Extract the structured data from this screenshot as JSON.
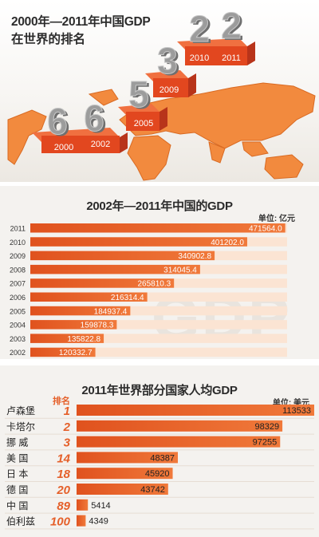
{
  "infographic": {
    "section1": {
      "title": "2000年—2011年中国GDP",
      "subtitle": "在世界的排名"
    },
    "section2": {
      "title": "2002年—2011年中国的GDP",
      "unit": "单位: 亿元",
      "watermark": "GDP"
    },
    "section3": {
      "title": "2011年世界部分国家人均GDP",
      "unit": "单位: 美元",
      "rank_header": "排名"
    }
  },
  "colors": {
    "orange_dark": "#e0521e",
    "orange": "#f0793a",
    "orange_light": "#f7b48a",
    "track": "#fbe4d3",
    "rank_text": "#e5602a",
    "map": "#f28a3e",
    "steps_red": "#e2471f",
    "digits_gray": "#9c9c9c"
  },
  "chart_data": [
    {
      "type": "bar",
      "title": "2000年—2011年中国GDP 在世界的排名",
      "categories": [
        "2000",
        "2002",
        "2005",
        "2009",
        "2010",
        "2011"
      ],
      "values": [
        6,
        6,
        5,
        3,
        2,
        2
      ],
      "style": "3d-steps"
    },
    {
      "type": "bar",
      "orientation": "horizontal",
      "title": "2002年—2011年中国的GDP",
      "unit": "单位: 亿元",
      "categories": [
        "2011",
        "2010",
        "2009",
        "2008",
        "2007",
        "2006",
        "2005",
        "2004",
        "2003",
        "2002"
      ],
      "values": [
        471564.0,
        401202.0,
        340902.8,
        314045.4,
        265810.3,
        216314.4,
        184937.4,
        159878.3,
        135822.8,
        120332.7
      ],
      "labels": [
        "471564.0",
        "401202.0",
        "340902.8",
        "314045.4",
        "265810.3",
        "216314.4",
        "184937.4",
        "159878.3",
        "135822.8",
        "120332.7"
      ],
      "xlim": [
        0,
        475000
      ]
    },
    {
      "type": "bar",
      "orientation": "horizontal",
      "title": "2011年世界部分国家人均GDP",
      "unit": "单位: 美元",
      "categories": [
        "卢森堡",
        "卡塔尔",
        "挪 威",
        "美 国",
        "日 本",
        "德 国",
        "中 国",
        "伯利兹"
      ],
      "ranks": [
        "1",
        "2",
        "3",
        "14",
        "18",
        "20",
        "89",
        "100"
      ],
      "values": [
        113533,
        98329,
        97255,
        48387,
        45920,
        43742,
        5414,
        4349
      ],
      "labels": [
        "113533",
        "98329",
        "97255",
        "48387",
        "45920",
        "43742",
        "5414",
        "4349"
      ],
      "xlim": [
        0,
        113533
      ]
    }
  ]
}
